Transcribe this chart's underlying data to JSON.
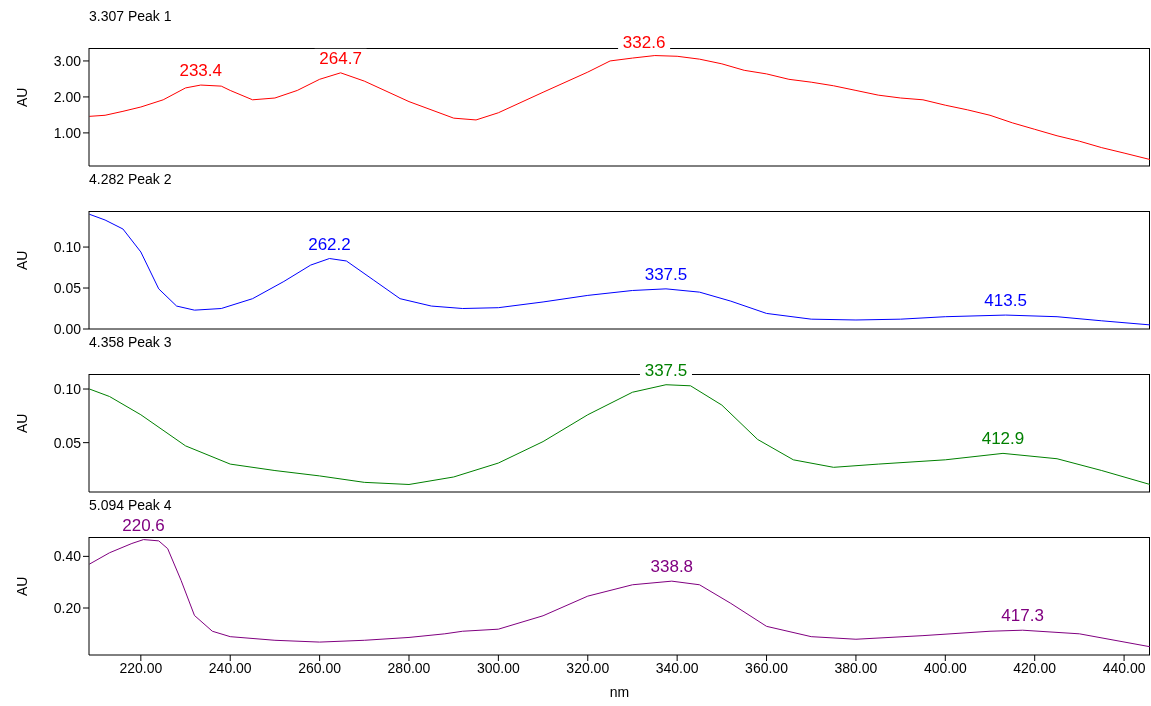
{
  "chart_data": [
    {
      "type": "line",
      "title": "3.307 Peak 1",
      "ylabel": "AU",
      "xlim": [
        208.4,
        445.8
      ],
      "ylim": [
        0.08,
        3.36
      ],
      "yticks": [
        {
          "value": 1,
          "label": "1.00"
        },
        {
          "value": 2,
          "label": "2.00"
        },
        {
          "value": 3,
          "label": "3.00"
        }
      ],
      "tick_labels": "y",
      "grid": false,
      "legend": false,
      "marker": "none",
      "line_style": "solid",
      "annotations": [
        {
          "text": "233.4",
          "x": 233.4,
          "y": 2.33
        },
        {
          "text": "264.7",
          "x": 264.7,
          "y": 2.67
        },
        {
          "text": "332.6",
          "x": 332.6,
          "y": 3.12
        }
      ],
      "series": [
        {
          "color": "#ff0000",
          "x": [
            208.5,
            212,
            216,
            220,
            225,
            230,
            233.4,
            238,
            240,
            245,
            250,
            255,
            260,
            264.7,
            270,
            280,
            290,
            295,
            300,
            310,
            320,
            325,
            330,
            335,
            340,
            345,
            350,
            355,
            360,
            365,
            370,
            375,
            380,
            385,
            390,
            395,
            400,
            405,
            410,
            415,
            420,
            425,
            430,
            435,
            440,
            445.8
          ],
          "values": [
            1.46,
            1.49,
            1.6,
            1.72,
            1.92,
            2.25,
            2.33,
            2.3,
            2.18,
            1.92,
            1.97,
            2.18,
            2.49,
            2.67,
            2.44,
            1.87,
            1.41,
            1.36,
            1.56,
            2.13,
            2.69,
            3.0,
            3.08,
            3.15,
            3.13,
            3.05,
            2.92,
            2.74,
            2.64,
            2.49,
            2.41,
            2.31,
            2.18,
            2.05,
            1.97,
            1.92,
            1.77,
            1.64,
            1.49,
            1.28,
            1.1,
            0.92,
            0.77,
            0.59,
            0.44,
            0.26
          ]
        }
      ]
    },
    {
      "type": "line",
      "title": "4.282 Peak 2",
      "ylabel": "AU",
      "xlim": [
        208.4,
        445.8
      ],
      "ylim": [
        0,
        0.144
      ],
      "yticks": [
        {
          "value": 0,
          "label": "0.00"
        },
        {
          "value": 0.05,
          "label": "0.05"
        },
        {
          "value": 0.1,
          "label": "0.10"
        }
      ],
      "tick_labels": "y",
      "grid": false,
      "legend": false,
      "marker": "none",
      "line_style": "solid",
      "annotations": [
        {
          "text": "262.2",
          "x": 262.2,
          "y": 0.086
        },
        {
          "text": "337.5",
          "x": 337.5,
          "y": 0.049
        },
        {
          "text": "413.5",
          "x": 413.5,
          "y": 0.017
        }
      ],
      "series": [
        {
          "color": "#0000ff",
          "x": [
            208.5,
            212,
            216,
            220,
            224,
            228,
            232,
            238,
            245,
            252,
            258,
            262.2,
            266,
            272,
            278,
            285,
            292,
            300,
            310,
            320,
            330,
            337.5,
            345,
            352,
            360,
            370,
            380,
            390,
            400,
            413.5,
            425,
            435,
            445.8
          ],
          "values": [
            0.14,
            0.133,
            0.122,
            0.094,
            0.049,
            0.028,
            0.023,
            0.025,
            0.037,
            0.058,
            0.078,
            0.086,
            0.083,
            0.06,
            0.037,
            0.028,
            0.025,
            0.026,
            0.033,
            0.041,
            0.047,
            0.049,
            0.045,
            0.034,
            0.019,
            0.012,
            0.011,
            0.012,
            0.015,
            0.017,
            0.015,
            0.01,
            0.005
          ]
        }
      ]
    },
    {
      "type": "line",
      "title": "4.358 Peak 3",
      "ylabel": "AU",
      "xlim": [
        208.4,
        445.8
      ],
      "ylim": [
        0.004,
        0.114
      ],
      "yticks": [
        {
          "value": 0.05,
          "label": "0.05"
        },
        {
          "value": 0.1,
          "label": "0.10"
        }
      ],
      "tick_labels": "y",
      "grid": false,
      "legend": false,
      "marker": "none",
      "line_style": "solid",
      "annotations": [
        {
          "text": "337.5",
          "x": 337.5,
          "y": 0.104
        },
        {
          "text": "412.9",
          "x": 412.9,
          "y": 0.04
        }
      ],
      "series": [
        {
          "color": "#008000",
          "x": [
            208.5,
            213,
            220,
            230,
            240,
            250,
            260,
            270,
            280,
            290,
            300,
            310,
            320,
            330,
            337.5,
            343,
            350,
            358,
            366,
            375,
            385,
            400,
            412.9,
            425,
            435,
            445.8
          ],
          "values": [
            0.1,
            0.093,
            0.076,
            0.047,
            0.03,
            0.024,
            0.019,
            0.013,
            0.011,
            0.018,
            0.031,
            0.051,
            0.076,
            0.097,
            0.104,
            0.103,
            0.085,
            0.053,
            0.034,
            0.027,
            0.03,
            0.034,
            0.04,
            0.035,
            0.024,
            0.011
          ]
        }
      ]
    },
    {
      "type": "line",
      "title": "5.094 Peak 4",
      "xlabel": "nm",
      "ylabel": "AU",
      "xlim": [
        208.4,
        445.8
      ],
      "ylim": [
        0.018,
        0.475
      ],
      "xticks": [
        {
          "value": 220,
          "label": "220.00"
        },
        {
          "value": 240,
          "label": "240.00"
        },
        {
          "value": 260,
          "label": "260.00"
        },
        {
          "value": 280,
          "label": "280.00"
        },
        {
          "value": 300,
          "label": "300.00"
        },
        {
          "value": 320,
          "label": "320.00"
        },
        {
          "value": 340,
          "label": "340.00"
        },
        {
          "value": 360,
          "label": "360.00"
        },
        {
          "value": 380,
          "label": "380.00"
        },
        {
          "value": 400,
          "label": "400.00"
        },
        {
          "value": 420,
          "label": "420.00"
        },
        {
          "value": 440,
          "label": "440.00"
        }
      ],
      "yticks": [
        {
          "value": 0.2,
          "label": "0.20"
        },
        {
          "value": 0.4,
          "label": "0.40"
        }
      ],
      "grid": false,
      "legend": false,
      "marker": "none",
      "line_style": "solid",
      "annotations": [
        {
          "text": "220.6",
          "x": 220.6,
          "y": 0.465
        },
        {
          "text": "338.8",
          "x": 338.8,
          "y": 0.304
        },
        {
          "text": "417.3",
          "x": 417.3,
          "y": 0.114
        }
      ],
      "series": [
        {
          "color": "#800080",
          "x": [
            208.5,
            213,
            218,
            220.6,
            224,
            226,
            229,
            232,
            236,
            240,
            250,
            260,
            270,
            280,
            288,
            292,
            300,
            310,
            320,
            330,
            338.8,
            345,
            352,
            360,
            370,
            380,
            395,
            410,
            417.3,
            430,
            445.8
          ],
          "values": [
            0.37,
            0.414,
            0.45,
            0.465,
            0.46,
            0.43,
            0.307,
            0.171,
            0.11,
            0.089,
            0.075,
            0.068,
            0.075,
            0.086,
            0.1,
            0.11,
            0.118,
            0.17,
            0.246,
            0.29,
            0.304,
            0.29,
            0.218,
            0.129,
            0.089,
            0.079,
            0.093,
            0.11,
            0.114,
            0.1,
            0.05
          ]
        }
      ]
    }
  ]
}
